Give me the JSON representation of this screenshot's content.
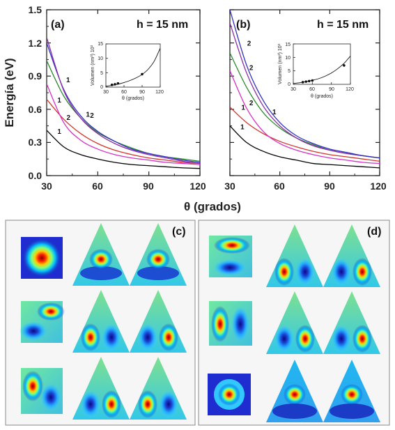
{
  "figure": {
    "bottom_labels": [
      "(c)",
      "(d)"
    ]
  },
  "chart_data": [
    {
      "panel": "(a)",
      "type": "line",
      "annotation": "h = 15 nm",
      "xlabel": "θ (grados)",
      "ylabel": "Energía (eV)",
      "xlim": [
        30,
        120
      ],
      "ylim": [
        0,
        1.5
      ],
      "xticks": [
        "30",
        "60",
        "90",
        "120"
      ],
      "yticks": [
        "0.0",
        "0.3",
        "0.6",
        "0.9",
        "1.2",
        "1.5"
      ],
      "grid": false,
      "legend": "none",
      "series": [
        {
          "color": "#000000",
          "label": "1",
          "x": [
            30,
            40,
            50,
            60,
            70,
            80,
            90,
            100,
            110,
            120
          ],
          "y": [
            0.41,
            0.26,
            0.19,
            0.15,
            0.12,
            0.1,
            0.09,
            0.08,
            0.07,
            0.065
          ]
        },
        {
          "color": "#d4352a",
          "label": "1",
          "x": [
            30,
            40,
            50,
            60,
            70,
            80,
            90,
            100,
            110,
            120
          ],
          "y": [
            0.69,
            0.51,
            0.38,
            0.29,
            0.23,
            0.19,
            0.16,
            0.14,
            0.12,
            0.11
          ]
        },
        {
          "color": "#d62fc8",
          "label": "2",
          "x": [
            30,
            40,
            50,
            60,
            70,
            80,
            90,
            100,
            110,
            120
          ],
          "y": [
            0.83,
            0.48,
            0.32,
            0.24,
            0.19,
            0.16,
            0.14,
            0.12,
            0.11,
            0.1
          ]
        },
        {
          "color": "#2a8a2a",
          "label": "1",
          "x": [
            30,
            40,
            50,
            60,
            70,
            80,
            90,
            100,
            110,
            120
          ],
          "y": [
            1.04,
            0.72,
            0.52,
            0.39,
            0.31,
            0.25,
            0.2,
            0.17,
            0.15,
            0.13
          ]
        },
        {
          "color": "#3030c0",
          "label": "2",
          "x": [
            30,
            40,
            50,
            60,
            70,
            80,
            90,
            100,
            110,
            120
          ],
          "y": [
            1.2,
            0.78,
            0.54,
            0.4,
            0.31,
            0.24,
            0.2,
            0.17,
            0.14,
            0.12
          ]
        },
        {
          "color": "#8a2aa8",
          "label": "1",
          "x": [
            30,
            40,
            50,
            60,
            70,
            80,
            90,
            100,
            110,
            120
          ],
          "y": [
            1.25,
            0.77,
            0.52,
            0.38,
            0.29,
            0.23,
            0.19,
            0.16,
            0.13,
            0.11
          ]
        }
      ],
      "inset": {
        "type": "scatter",
        "xlabel": "θ (grados)",
        "ylabel": "Volumen (nm³) 10³",
        "xlim": [
          30,
          120
        ],
        "ylim": [
          0,
          15
        ],
        "xticks": [
          "30",
          "60",
          "90",
          "120"
        ],
        "yticks": [
          "0",
          "5",
          "10",
          "15"
        ],
        "points": {
          "x": [
            40,
            45,
            50,
            90
          ],
          "y": [
            0.8,
            1.0,
            1.3,
            4.5
          ]
        },
        "fit": {
          "x": [
            30,
            40,
            50,
            60,
            70,
            80,
            90,
            100,
            110,
            120
          ],
          "y": [
            0.3,
            0.6,
            1.0,
            1.6,
            2.3,
            3.2,
            4.4,
            6.2,
            9.0,
            13.5
          ]
        }
      }
    },
    {
      "panel": "(b)",
      "type": "line",
      "annotation": "h = 15 nm",
      "xlabel": "θ (grados)",
      "xlim": [
        30,
        120
      ],
      "ylim": [
        0,
        1.5
      ],
      "xticks": [
        "30",
        "60",
        "90",
        "120"
      ],
      "grid": false,
      "legend": "none",
      "series": [
        {
          "color": "#000000",
          "label": "1",
          "x": [
            30,
            40,
            50,
            60,
            70,
            80,
            90,
            100,
            110,
            120
          ],
          "y": [
            0.45,
            0.3,
            0.22,
            0.17,
            0.14,
            0.11,
            0.1,
            0.09,
            0.08,
            0.07
          ]
        },
        {
          "color": "#d4352a",
          "label": "1",
          "x": [
            30,
            40,
            50,
            60,
            70,
            80,
            90,
            100,
            110,
            120
          ],
          "y": [
            0.62,
            0.48,
            0.38,
            0.31,
            0.26,
            0.22,
            0.19,
            0.17,
            0.15,
            0.13
          ]
        },
        {
          "color": "#d62fc8",
          "label": "2",
          "x": [
            30,
            40,
            50,
            60,
            70,
            80,
            90,
            100,
            110,
            120
          ],
          "y": [
            0.95,
            0.61,
            0.4,
            0.29,
            0.23,
            0.19,
            0.16,
            0.14,
            0.12,
            0.11
          ]
        },
        {
          "color": "#2a8a2a",
          "label": "1",
          "x": [
            30,
            40,
            50,
            60,
            70,
            80,
            90,
            100,
            110,
            120
          ],
          "y": [
            1.11,
            0.8,
            0.57,
            0.43,
            0.34,
            0.28,
            0.23,
            0.2,
            0.18,
            0.16
          ]
        },
        {
          "color": "#8a2aa8",
          "label": "2",
          "x": [
            30,
            40,
            50,
            60,
            70,
            80,
            90,
            100,
            110,
            120
          ],
          "y": [
            1.38,
            0.93,
            0.63,
            0.45,
            0.34,
            0.27,
            0.23,
            0.2,
            0.18,
            0.16
          ]
        },
        {
          "color": "#3030c0",
          "label": "2",
          "x": [
            30,
            40,
            50,
            60,
            70,
            80,
            90,
            100,
            110,
            120
          ],
          "y": [
            1.5,
            1.0,
            0.68,
            0.48,
            0.36,
            0.29,
            0.24,
            0.21,
            0.18,
            0.16
          ]
        }
      ],
      "inset": {
        "type": "scatter",
        "xlabel": "θ (grados)",
        "ylabel": "Volumen (nm³) 10³",
        "xlim": [
          30,
          120
        ],
        "ylim": [
          0,
          15
        ],
        "xticks": [
          "30",
          "60",
          "90",
          "120"
        ],
        "yticks": [
          "0",
          "5",
          "10",
          "15"
        ],
        "points": {
          "x": [
            45,
            50,
            55,
            60,
            110
          ],
          "y": [
            0.8,
            1.0,
            1.2,
            1.4,
            7.0
          ]
        },
        "fit": {
          "x": [
            30,
            40,
            50,
            60,
            70,
            80,
            90,
            100,
            110,
            120
          ],
          "y": [
            0.3,
            0.6,
            1.0,
            1.5,
            2.1,
            3.0,
            4.2,
            5.8,
            7.8,
            10.5
          ]
        }
      }
    }
  ]
}
